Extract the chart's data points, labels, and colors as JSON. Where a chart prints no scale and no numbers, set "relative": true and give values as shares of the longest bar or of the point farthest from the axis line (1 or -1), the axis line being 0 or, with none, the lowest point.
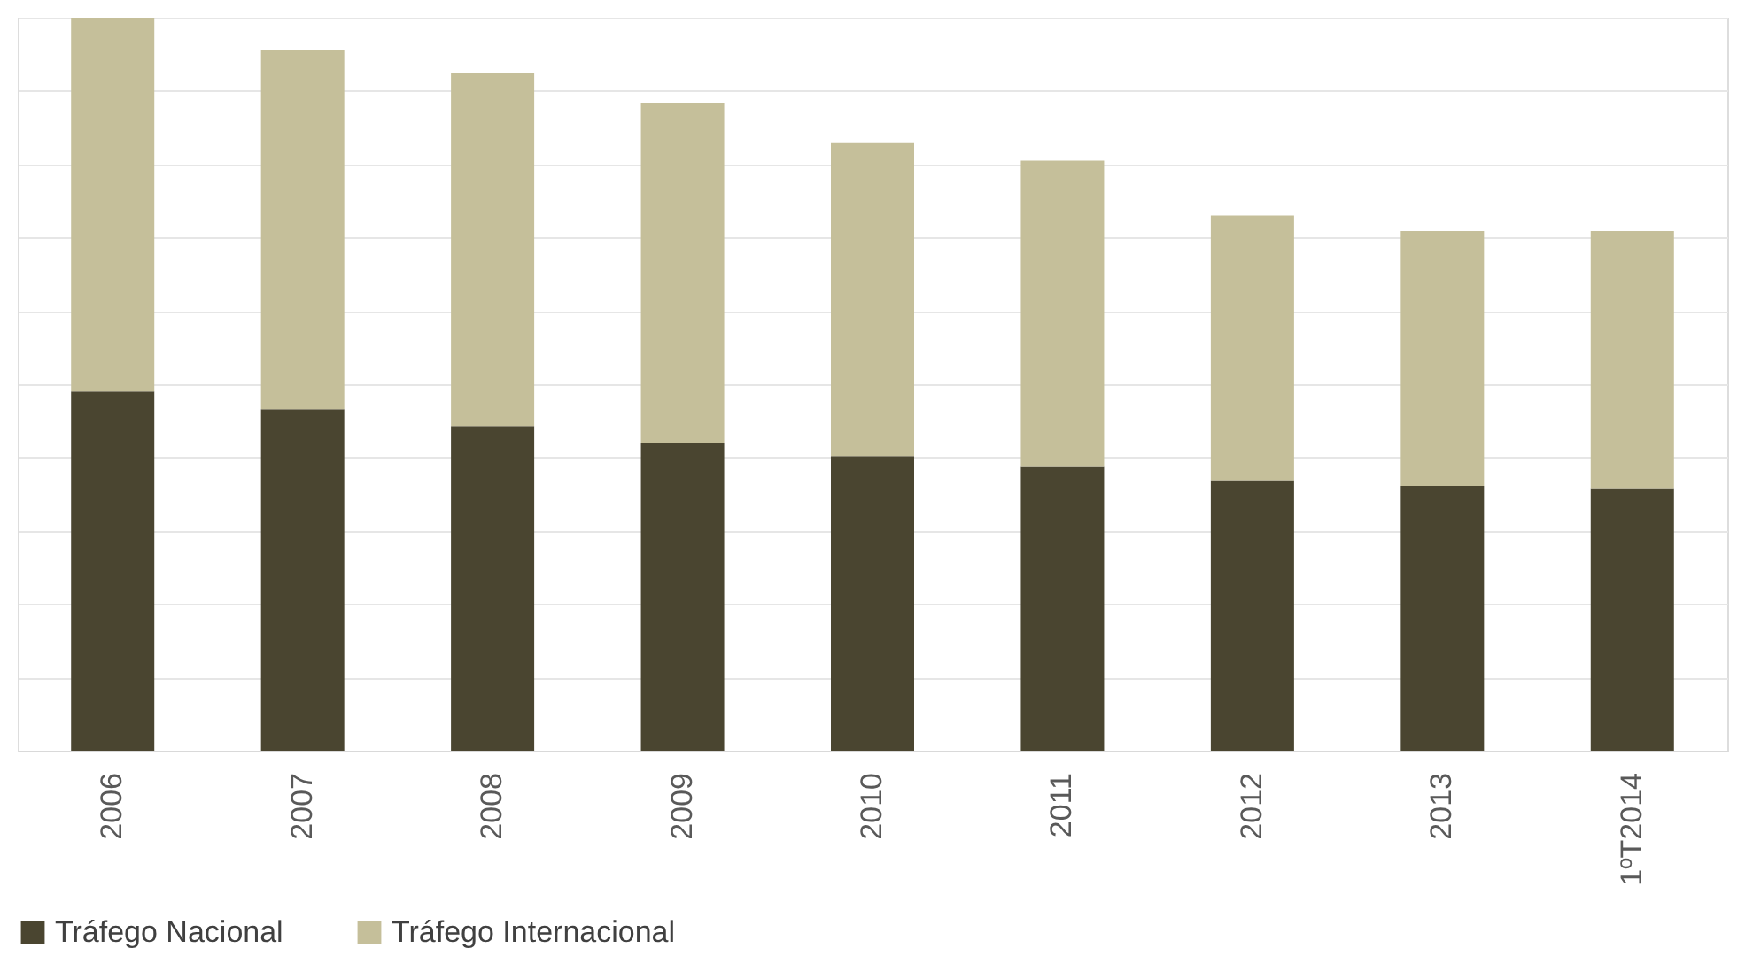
{
  "chart_data": {
    "type": "bar",
    "stacked": true,
    "relative": true,
    "grid": "y",
    "legend": "bottom",
    "categories": [
      "2006",
      "2007",
      "2008",
      "2009",
      "2010",
      "2011",
      "2012",
      "2013",
      "1ºT2014"
    ],
    "series": [
      {
        "name": "Tráfego Nacional",
        "color": "#4a4530",
        "values": [
          0.49,
          0.466,
          0.443,
          0.42,
          0.402,
          0.387,
          0.369,
          0.361,
          0.358
        ]
      },
      {
        "name": "Tráfego Internacional",
        "color": "#c5bf9a",
        "values": [
          0.51,
          0.49,
          0.482,
          0.464,
          0.428,
          0.418,
          0.361,
          0.348,
          0.351
        ]
      }
    ]
  }
}
